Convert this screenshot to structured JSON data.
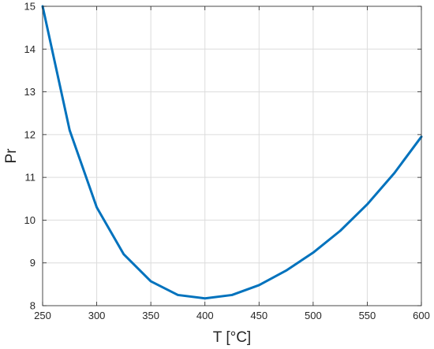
{
  "chart_data": {
    "type": "line",
    "xlabel": "T [°C]",
    "ylabel": "Pr",
    "xlim": [
      250,
      600
    ],
    "ylim": [
      8,
      15
    ],
    "xticks": [
      250,
      300,
      350,
      400,
      450,
      500,
      550,
      600
    ],
    "yticks": [
      8,
      9,
      10,
      11,
      12,
      13,
      14,
      15
    ],
    "xtick_labels": [
      "250",
      "300",
      "350",
      "400",
      "450",
      "500",
      "550",
      "600"
    ],
    "ytick_labels": [
      "8",
      "9",
      "10",
      "11",
      "12",
      "13",
      "14",
      "15"
    ],
    "grid": true,
    "series": [
      {
        "color": "#0072BD",
        "x": [
          250,
          275,
          300,
          325,
          350,
          375,
          400,
          425,
          450,
          475,
          500,
          525,
          550,
          575,
          600
        ],
        "y": [
          15.0,
          12.1,
          10.3,
          9.2,
          8.57,
          8.25,
          8.17,
          8.25,
          8.48,
          8.82,
          9.24,
          9.75,
          10.37,
          11.1,
          11.95
        ]
      }
    ]
  }
}
